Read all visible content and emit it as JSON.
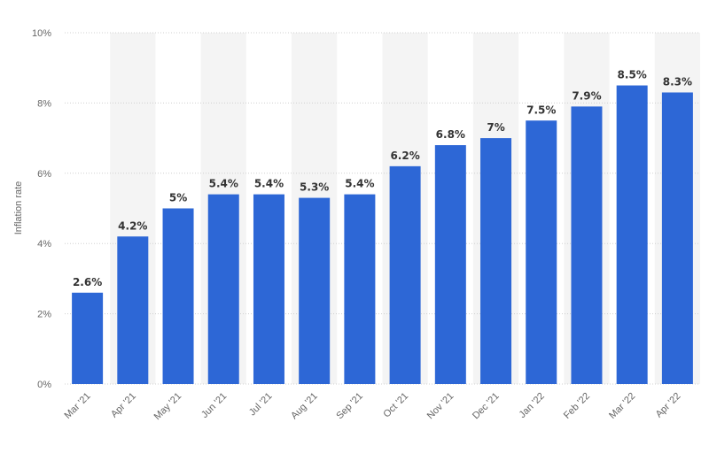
{
  "chart_data": {
    "type": "bar",
    "ylabel": "Inflation rate",
    "xlabel": "",
    "categories": [
      "Mar '21",
      "Apr '21",
      "May '21",
      "Jun '21",
      "Jul '21",
      "Aug '21",
      "Sep '21",
      "Oct '21",
      "Nov '21",
      "Dec '21",
      "Jan '22",
      "Feb '22",
      "Mar '22",
      "Apr '22"
    ],
    "values": [
      2.6,
      4.2,
      5,
      5.4,
      5.4,
      5.3,
      5.4,
      6.2,
      6.8,
      7,
      7.5,
      7.9,
      8.5,
      8.3
    ],
    "data_labels": [
      "2.6%",
      "4.2%",
      "5%",
      "5.4%",
      "5.4%",
      "5.3%",
      "5.4%",
      "6.2%",
      "6.8%",
      "7%",
      "7.5%",
      "7.9%",
      "8.5%",
      "8.3%"
    ],
    "yticks": [
      "0%",
      "2%",
      "4%",
      "6%",
      "8%",
      "10%"
    ],
    "ytick_values": [
      0,
      2,
      4,
      6,
      8,
      10
    ],
    "ylim": [
      0,
      10
    ],
    "grid": true,
    "alternating_column_shading": true,
    "colors": {
      "bar": "#2d67d6",
      "band": "#f4f4f4",
      "grid": "#d0d0d0"
    }
  }
}
